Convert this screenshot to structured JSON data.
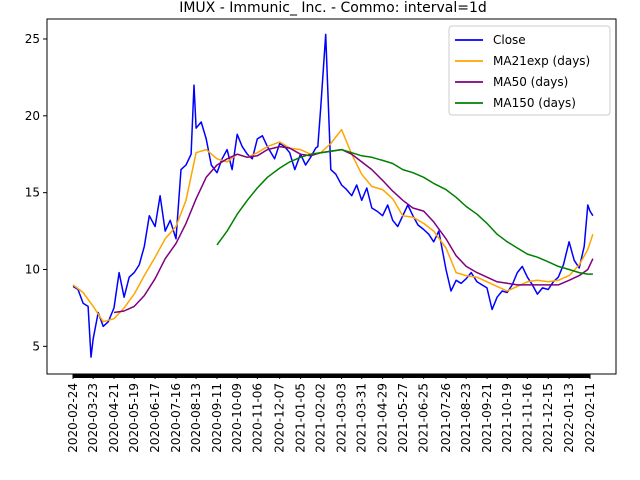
{
  "chart_data": {
    "type": "line",
    "title": "IMUX - Immunic_ Inc.  - Commo: interval=1d",
    "xlabel": "",
    "ylabel": "",
    "ylim": [
      3.2,
      26.3
    ],
    "grid": false,
    "legend_position": "top-right",
    "x_ticks": [
      "2020-02-24",
      "2020-03-23",
      "2020-04-21",
      "2020-05-19",
      "2020-06-17",
      "2020-07-16",
      "2020-08-13",
      "2020-09-11",
      "2020-10-09",
      "2020-11-06",
      "2020-12-07",
      "2021-01-05",
      "2021-02-02",
      "2021-03-03",
      "2021-03-31",
      "2021-04-29",
      "2021-05-27",
      "2021-06-25",
      "2021-07-26",
      "2021-08-23",
      "2021-09-21",
      "2021-10-19",
      "2021-11-16",
      "2021-12-15",
      "2022-01-13",
      "2022-02-11"
    ],
    "y_ticks": [
      5,
      10,
      15,
      20,
      25
    ],
    "series": [
      {
        "name": "Close",
        "color": "#0000ff",
        "x": [
          "2020-02-24",
          "2020-03-02",
          "2020-03-09",
          "2020-03-16",
          "2020-03-20",
          "2020-03-23",
          "2020-03-30",
          "2020-04-06",
          "2020-04-13",
          "2020-04-21",
          "2020-04-28",
          "2020-05-05",
          "2020-05-12",
          "2020-05-19",
          "2020-05-26",
          "2020-06-02",
          "2020-06-09",
          "2020-06-17",
          "2020-06-24",
          "2020-07-01",
          "2020-07-08",
          "2020-07-16",
          "2020-07-23",
          "2020-07-30",
          "2020-08-06",
          "2020-08-10",
          "2020-08-13",
          "2020-08-20",
          "2020-08-27",
          "2020-09-03",
          "2020-09-11",
          "2020-09-18",
          "2020-09-25",
          "2020-10-02",
          "2020-10-09",
          "2020-10-16",
          "2020-10-23",
          "2020-10-30",
          "2020-11-06",
          "2020-11-13",
          "2020-11-20",
          "2020-11-30",
          "2020-12-07",
          "2020-12-14",
          "2020-12-21",
          "2020-12-28",
          "2021-01-05",
          "2021-01-12",
          "2021-01-19",
          "2021-01-26",
          "2021-01-29",
          "2021-02-02",
          "2021-02-09",
          "2021-02-16",
          "2021-02-23",
          "2021-03-03",
          "2021-03-10",
          "2021-03-17",
          "2021-03-24",
          "2021-03-31",
          "2021-04-07",
          "2021-04-14",
          "2021-04-21",
          "2021-04-29",
          "2021-05-06",
          "2021-05-13",
          "2021-05-20",
          "2021-05-27",
          "2021-06-03",
          "2021-06-10",
          "2021-06-17",
          "2021-06-25",
          "2021-07-02",
          "2021-07-09",
          "2021-07-16",
          "2021-07-26",
          "2021-08-02",
          "2021-08-09",
          "2021-08-16",
          "2021-08-23",
          "2021-08-30",
          "2021-09-07",
          "2021-09-14",
          "2021-09-21",
          "2021-09-28",
          "2021-10-05",
          "2021-10-12",
          "2021-10-19",
          "2021-10-26",
          "2021-11-02",
          "2021-11-09",
          "2021-11-16",
          "2021-11-23",
          "2021-11-30",
          "2021-12-07",
          "2021-12-15",
          "2021-12-22",
          "2021-12-29",
          "2022-01-05",
          "2022-01-13",
          "2022-01-20",
          "2022-01-27",
          "2022-02-03",
          "2022-02-08",
          "2022-02-11",
          "2022-02-15"
        ],
        "values": [
          8.9,
          8.7,
          7.8,
          7.6,
          4.3,
          5.5,
          7.2,
          6.3,
          6.6,
          7.5,
          9.8,
          8.2,
          9.5,
          9.8,
          10.3,
          11.5,
          13.5,
          12.8,
          14.8,
          12.5,
          13.2,
          12.0,
          16.5,
          16.8,
          17.5,
          22.0,
          19.2,
          19.6,
          18.5,
          16.8,
          16.3,
          17.2,
          17.8,
          16.5,
          18.8,
          18.0,
          17.5,
          17.2,
          18.5,
          18.7,
          18.0,
          17.2,
          18.2,
          18.0,
          17.6,
          16.5,
          17.5,
          16.8,
          17.3,
          17.9,
          18.0,
          20.5,
          25.3,
          16.5,
          16.2,
          15.5,
          15.2,
          14.8,
          15.5,
          14.5,
          15.3,
          14.0,
          13.8,
          13.5,
          14.2,
          13.2,
          12.8,
          13.5,
          14.2,
          13.5,
          12.9,
          12.6,
          12.3,
          11.8,
          12.5,
          10.0,
          8.6,
          9.3,
          9.1,
          9.4,
          9.8,
          9.2,
          9.0,
          8.8,
          7.4,
          8.2,
          8.6,
          8.5,
          9.0,
          9.8,
          10.2,
          9.5,
          9.0,
          8.4,
          8.8,
          8.7,
          9.2,
          9.5,
          10.3,
          11.8,
          10.6,
          10.1,
          11.5,
          14.2,
          13.8,
          13.5
        ]
      },
      {
        "name": "MA21exp (days)",
        "color": "#ffa500",
        "x": [
          "2020-02-24",
          "2020-03-09",
          "2020-03-23",
          "2020-04-06",
          "2020-04-21",
          "2020-05-05",
          "2020-05-19",
          "2020-06-02",
          "2020-06-17",
          "2020-07-01",
          "2020-07-16",
          "2020-07-30",
          "2020-08-13",
          "2020-08-27",
          "2020-09-11",
          "2020-09-25",
          "2020-10-09",
          "2020-10-23",
          "2020-11-06",
          "2020-11-20",
          "2020-12-07",
          "2020-12-21",
          "2021-01-05",
          "2021-01-19",
          "2021-02-02",
          "2021-02-16",
          "2021-03-03",
          "2021-03-17",
          "2021-03-31",
          "2021-04-14",
          "2021-04-29",
          "2021-05-13",
          "2021-05-27",
          "2021-06-10",
          "2021-06-25",
          "2021-07-09",
          "2021-07-26",
          "2021-08-09",
          "2021-08-23",
          "2021-09-07",
          "2021-09-21",
          "2021-10-05",
          "2021-10-19",
          "2021-11-02",
          "2021-11-16",
          "2021-11-30",
          "2021-12-15",
          "2021-12-29",
          "2022-01-13",
          "2022-01-27",
          "2022-02-08",
          "2022-02-15"
        ],
        "values": [
          9.0,
          8.5,
          7.6,
          6.6,
          6.8,
          7.5,
          8.4,
          9.6,
          10.8,
          12.0,
          12.8,
          14.5,
          17.6,
          17.8,
          17.2,
          17.0,
          17.5,
          17.3,
          17.6,
          18.0,
          18.3,
          17.9,
          17.8,
          17.5,
          17.6,
          18.2,
          19.1,
          17.5,
          16.2,
          15.4,
          15.2,
          14.6,
          13.5,
          13.4,
          13.0,
          12.5,
          11.4,
          9.8,
          9.6,
          9.5,
          9.2,
          8.9,
          8.6,
          8.9,
          9.2,
          9.3,
          9.2,
          9.3,
          9.6,
          10.3,
          11.3,
          12.3
        ]
      },
      {
        "name": "MA50 (days)",
        "color": "#800080",
        "x": [
          "2020-04-21",
          "2020-05-05",
          "2020-05-19",
          "2020-06-02",
          "2020-06-17",
          "2020-07-01",
          "2020-07-16",
          "2020-07-30",
          "2020-08-13",
          "2020-08-27",
          "2020-09-11",
          "2020-09-25",
          "2020-10-09",
          "2020-10-23",
          "2020-11-06",
          "2020-11-20",
          "2020-12-07",
          "2020-12-21",
          "2021-01-05",
          "2021-01-19",
          "2021-02-02",
          "2021-02-16",
          "2021-03-03",
          "2021-03-17",
          "2021-03-31",
          "2021-04-14",
          "2021-04-29",
          "2021-05-13",
          "2021-05-27",
          "2021-06-10",
          "2021-06-25",
          "2021-07-09",
          "2021-07-26",
          "2021-08-09",
          "2021-08-23",
          "2021-09-07",
          "2021-09-21",
          "2021-10-05",
          "2021-10-19",
          "2021-11-02",
          "2021-11-16",
          "2021-11-30",
          "2021-12-15",
          "2021-12-29",
          "2022-01-13",
          "2022-01-27",
          "2022-02-08",
          "2022-02-15"
        ],
        "values": [
          7.2,
          7.3,
          7.6,
          8.3,
          9.4,
          10.7,
          11.7,
          13.0,
          14.6,
          16.0,
          16.8,
          17.2,
          17.5,
          17.3,
          17.4,
          17.8,
          18.0,
          17.9,
          17.5,
          17.4,
          17.6,
          17.7,
          17.8,
          17.5,
          17.0,
          16.5,
          15.8,
          15.1,
          14.5,
          14.0,
          13.8,
          13.1,
          12.0,
          10.9,
          10.2,
          9.8,
          9.5,
          9.2,
          9.1,
          9.0,
          9.0,
          9.0,
          9.0,
          9.0,
          9.3,
          9.6,
          10.0,
          10.7
        ]
      },
      {
        "name": "MA150 (days)",
        "color": "#008000",
        "x": [
          "2020-09-11",
          "2020-09-25",
          "2020-10-09",
          "2020-10-23",
          "2020-11-06",
          "2020-11-20",
          "2020-12-07",
          "2020-12-21",
          "2021-01-05",
          "2021-01-19",
          "2021-02-02",
          "2021-02-16",
          "2021-03-03",
          "2021-03-17",
          "2021-03-31",
          "2021-04-14",
          "2021-04-29",
          "2021-05-13",
          "2021-05-27",
          "2021-06-10",
          "2021-06-25",
          "2021-07-09",
          "2021-07-26",
          "2021-08-09",
          "2021-08-23",
          "2021-09-07",
          "2021-09-21",
          "2021-10-05",
          "2021-10-19",
          "2021-11-02",
          "2021-11-16",
          "2021-11-30",
          "2021-12-15",
          "2021-12-29",
          "2022-01-13",
          "2022-01-27",
          "2022-02-08",
          "2022-02-15"
        ],
        "values": [
          11.6,
          12.5,
          13.6,
          14.5,
          15.3,
          16.0,
          16.6,
          17.0,
          17.3,
          17.5,
          17.6,
          17.7,
          17.8,
          17.6,
          17.4,
          17.3,
          17.1,
          16.9,
          16.5,
          16.3,
          16.0,
          15.6,
          15.2,
          14.7,
          14.1,
          13.6,
          13.0,
          12.3,
          11.8,
          11.4,
          11.0,
          10.8,
          10.5,
          10.2,
          10.0,
          9.8,
          9.7,
          9.7
        ]
      }
    ]
  }
}
